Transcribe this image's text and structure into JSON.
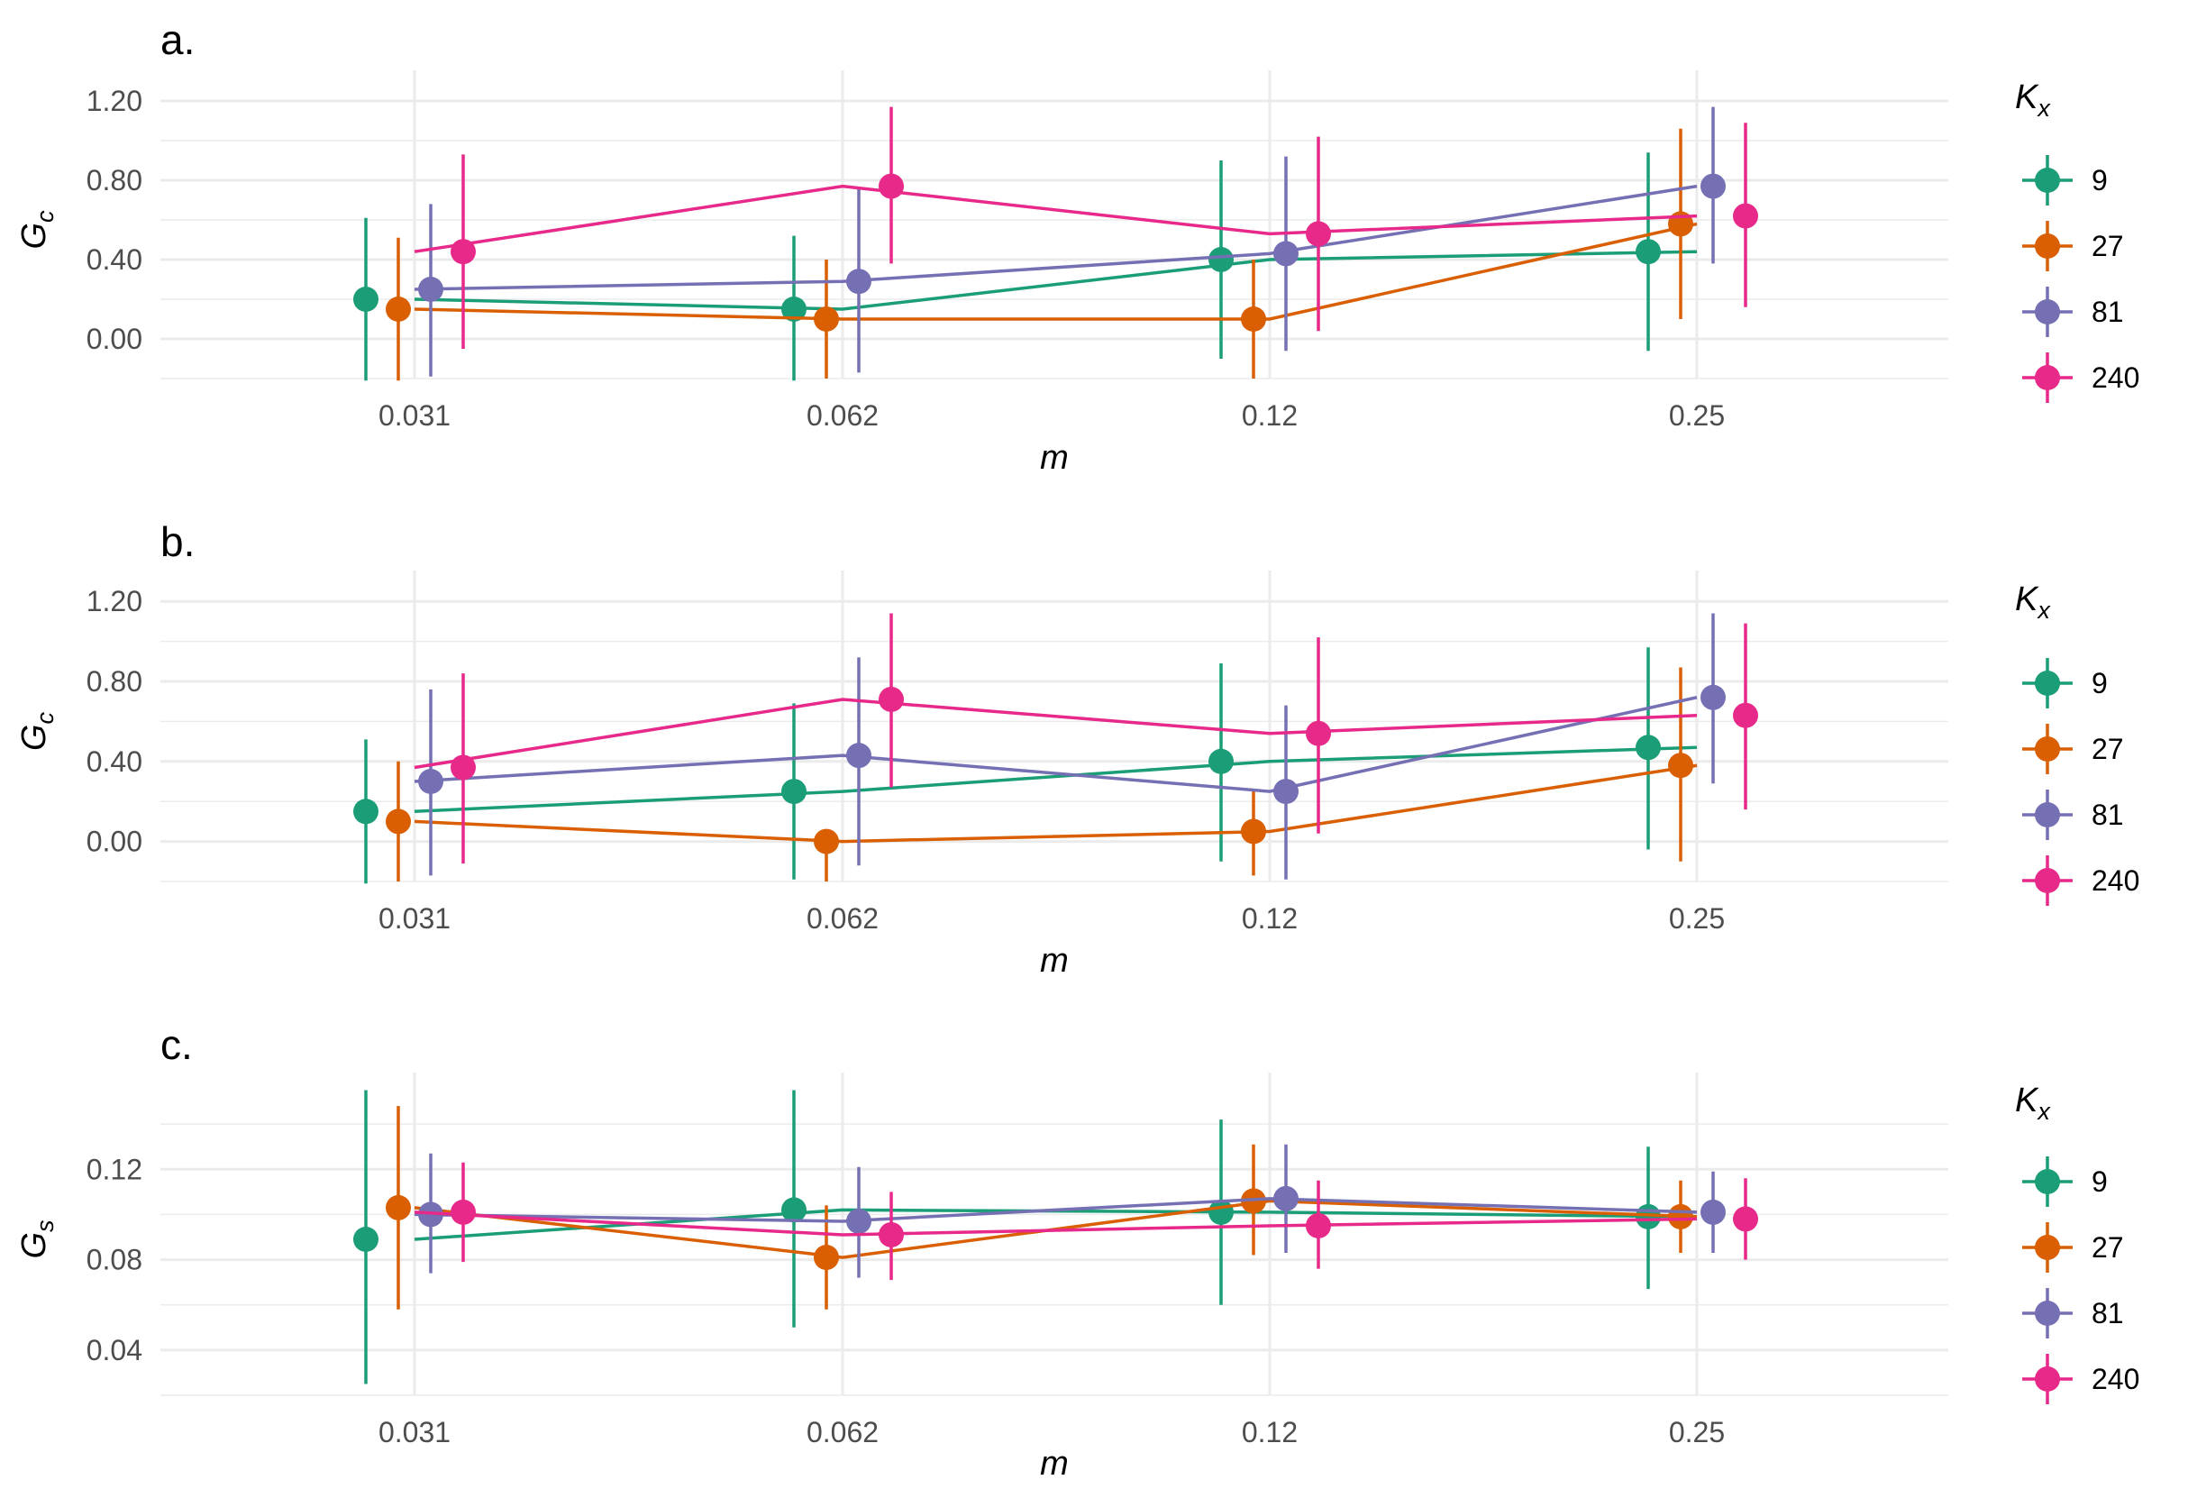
{
  "colors": {
    "K9": "#1b9e77",
    "K27": "#d95f02",
    "K81": "#7570b3",
    "K240": "#e7298a"
  },
  "chart_data": [
    {
      "type": "line",
      "panel_label": "a.",
      "xlabel": "m",
      "ylabel": "G_c",
      "ylabel_main": "G",
      "ylabel_sub": "c",
      "categories": [
        "0.031",
        "0.062",
        "0.12",
        "0.25"
      ],
      "y_ticks": [
        "0.00",
        "0.40",
        "0.80",
        "1.20"
      ],
      "ylim": [
        -0.2,
        1.3
      ],
      "grid": true,
      "legend_title_main": "K",
      "legend_title_sub": "x",
      "legend_placement": "right",
      "series": [
        {
          "name": "9",
          "color_key": "K9",
          "values": [
            0.2,
            0.15,
            0.4,
            0.44
          ],
          "lower": [
            -0.21,
            -0.21,
            -0.1,
            -0.06
          ],
          "upper": [
            0.61,
            0.52,
            0.9,
            0.94
          ]
        },
        {
          "name": "27",
          "color_key": "K27",
          "values": [
            0.15,
            0.1,
            0.1,
            0.58
          ],
          "lower": [
            -0.21,
            -0.2,
            -0.2,
            0.1
          ],
          "upper": [
            0.51,
            0.4,
            0.4,
            1.06
          ]
        },
        {
          "name": "81",
          "color_key": "K81",
          "values": [
            0.25,
            0.29,
            0.43,
            0.77
          ],
          "lower": [
            -0.19,
            -0.17,
            -0.06,
            0.38
          ],
          "upper": [
            0.68,
            0.76,
            0.92,
            1.17
          ]
        },
        {
          "name": "240",
          "color_key": "K240",
          "values": [
            0.44,
            0.77,
            0.53,
            0.62
          ],
          "lower": [
            -0.05,
            0.38,
            0.04,
            0.16
          ],
          "upper": [
            0.93,
            1.17,
            1.02,
            1.09
          ]
        }
      ]
    },
    {
      "type": "line",
      "panel_label": "b.",
      "xlabel": "m",
      "ylabel": "G_c",
      "ylabel_main": "G",
      "ylabel_sub": "c",
      "categories": [
        "0.031",
        "0.062",
        "0.12",
        "0.25"
      ],
      "y_ticks": [
        "0.00",
        "0.40",
        "0.80",
        "1.20"
      ],
      "ylim": [
        -0.2,
        1.3
      ],
      "grid": true,
      "legend_title_main": "K",
      "legend_title_sub": "x",
      "legend_placement": "right",
      "series": [
        {
          "name": "9",
          "color_key": "K9",
          "values": [
            0.15,
            0.25,
            0.4,
            0.47
          ],
          "lower": [
            -0.21,
            -0.19,
            -0.1,
            -0.04
          ],
          "upper": [
            0.51,
            0.69,
            0.89,
            0.97
          ]
        },
        {
          "name": "27",
          "color_key": "K27",
          "values": [
            0.1,
            0.0,
            0.05,
            0.38
          ],
          "lower": [
            -0.2,
            -0.2,
            -0.17,
            -0.1
          ],
          "upper": [
            0.4,
            0.0,
            0.26,
            0.87
          ]
        },
        {
          "name": "81",
          "color_key": "K81",
          "values": [
            0.3,
            0.43,
            0.25,
            0.72
          ],
          "lower": [
            -0.17,
            -0.12,
            -0.19,
            0.29
          ],
          "upper": [
            0.76,
            0.92,
            0.68,
            1.14
          ]
        },
        {
          "name": "240",
          "color_key": "K240",
          "values": [
            0.37,
            0.71,
            0.54,
            0.63
          ],
          "lower": [
            -0.11,
            0.27,
            0.04,
            0.16
          ],
          "upper": [
            0.84,
            1.14,
            1.02,
            1.09
          ]
        }
      ]
    },
    {
      "type": "line",
      "panel_label": "c.",
      "xlabel": "m",
      "ylabel": "G_s",
      "ylabel_main": "G",
      "ylabel_sub": "s",
      "categories": [
        "0.031",
        "0.062",
        "0.12",
        "0.25"
      ],
      "y_ticks": [
        "0.04",
        "0.08",
        "0.12"
      ],
      "ylim": [
        0.02,
        0.158
      ],
      "grid": true,
      "legend_title_main": "K",
      "legend_title_sub": "x",
      "legend_placement": "right",
      "series": [
        {
          "name": "9",
          "color_key": "K9",
          "values": [
            0.089,
            0.102,
            0.101,
            0.099
          ],
          "lower": [
            0.025,
            0.05,
            0.06,
            0.067
          ],
          "upper": [
            0.155,
            0.155,
            0.142,
            0.13
          ]
        },
        {
          "name": "27",
          "color_key": "K27",
          "values": [
            0.103,
            0.081,
            0.106,
            0.099
          ],
          "lower": [
            0.058,
            0.058,
            0.082,
            0.083
          ],
          "upper": [
            0.148,
            0.104,
            0.131,
            0.115
          ]
        },
        {
          "name": "81",
          "color_key": "K81",
          "values": [
            0.1,
            0.097,
            0.107,
            0.101
          ],
          "lower": [
            0.074,
            0.072,
            0.083,
            0.083
          ],
          "upper": [
            0.127,
            0.121,
            0.131,
            0.119
          ]
        },
        {
          "name": "240",
          "color_key": "K240",
          "values": [
            0.101,
            0.091,
            0.095,
            0.098
          ],
          "lower": [
            0.079,
            0.071,
            0.076,
            0.08
          ],
          "upper": [
            0.123,
            0.11,
            0.115,
            0.116
          ]
        }
      ]
    }
  ]
}
